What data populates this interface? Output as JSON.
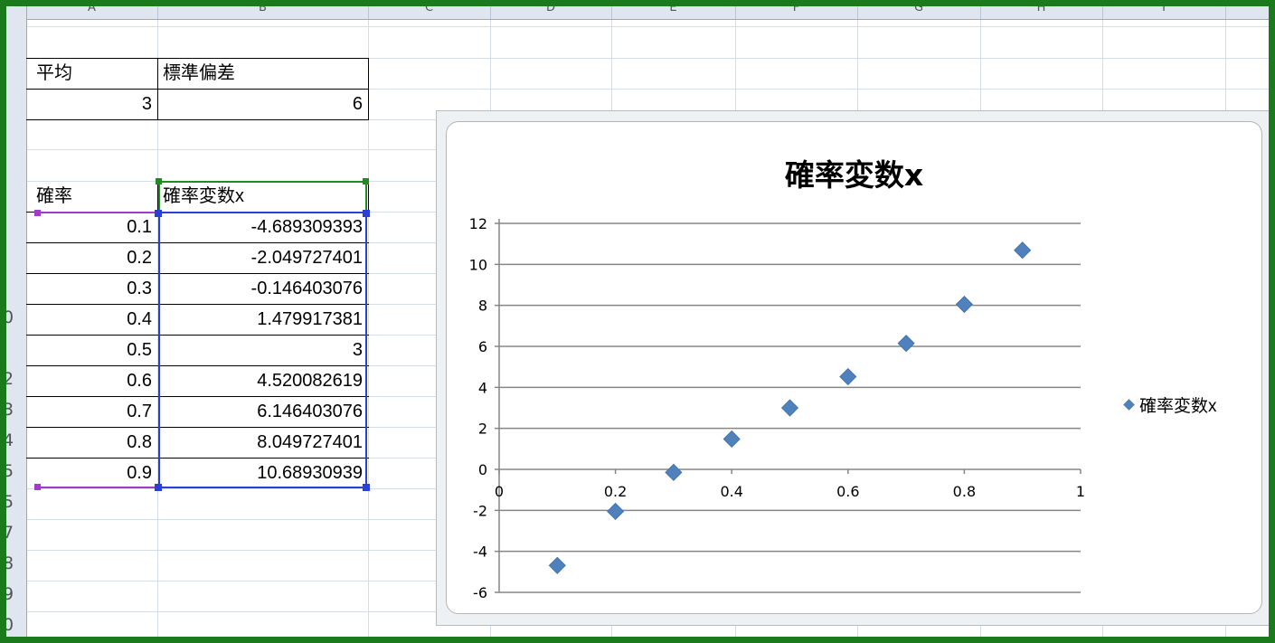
{
  "sheet": {
    "column_headers": [
      "A",
      "B",
      "C",
      "D",
      "E",
      "F",
      "G",
      "H",
      "I"
    ],
    "row_headers": [
      "0",
      "2",
      "3",
      "4",
      "5",
      "5",
      "7",
      "8",
      "9",
      "0"
    ],
    "cells": {
      "a2": "平均",
      "b2": "標準偏差",
      "a3": "3",
      "b3": "6",
      "a6": "確率",
      "b6": "確率変数x"
    },
    "table_rows": [
      {
        "p": "0.1",
        "x": "-4.689309393"
      },
      {
        "p": "0.2",
        "x": "-2.049727401"
      },
      {
        "p": "0.3",
        "x": "-0.146403076"
      },
      {
        "p": "0.4",
        "x": "1.479917381"
      },
      {
        "p": "0.5",
        "x": "3"
      },
      {
        "p": "0.6",
        "x": "4.520082619"
      },
      {
        "p": "0.7",
        "x": "6.146403076"
      },
      {
        "p": "0.8",
        "x": "8.049727401"
      },
      {
        "p": "0.9",
        "x": "10.68930939"
      }
    ]
  },
  "chart_data": {
    "type": "scatter",
    "title": "確率変数x",
    "xlabel": "",
    "ylabel": "",
    "xlim": [
      0,
      1
    ],
    "ylim": [
      -6,
      12
    ],
    "x_ticks": [
      "0",
      "0.2",
      "0.4",
      "0.6",
      "0.8",
      "1"
    ],
    "y_ticks": [
      "12",
      "10",
      "8",
      "6",
      "4",
      "2",
      "0",
      "-2",
      "-4",
      "-6"
    ],
    "grid": "horizontal major gridlines",
    "legend_position": "right",
    "series": [
      {
        "name": "確率変数x",
        "color": "#4f81bd",
        "marker": "diamond",
        "x": [
          0.1,
          0.2,
          0.3,
          0.4,
          0.5,
          0.6,
          0.7,
          0.8,
          0.9
        ],
        "y": [
          -4.689309393,
          -2.049727401,
          -0.146403076,
          1.479917381,
          3,
          4.520082619,
          6.146403076,
          8.049727401,
          10.68930939
        ]
      }
    ]
  }
}
